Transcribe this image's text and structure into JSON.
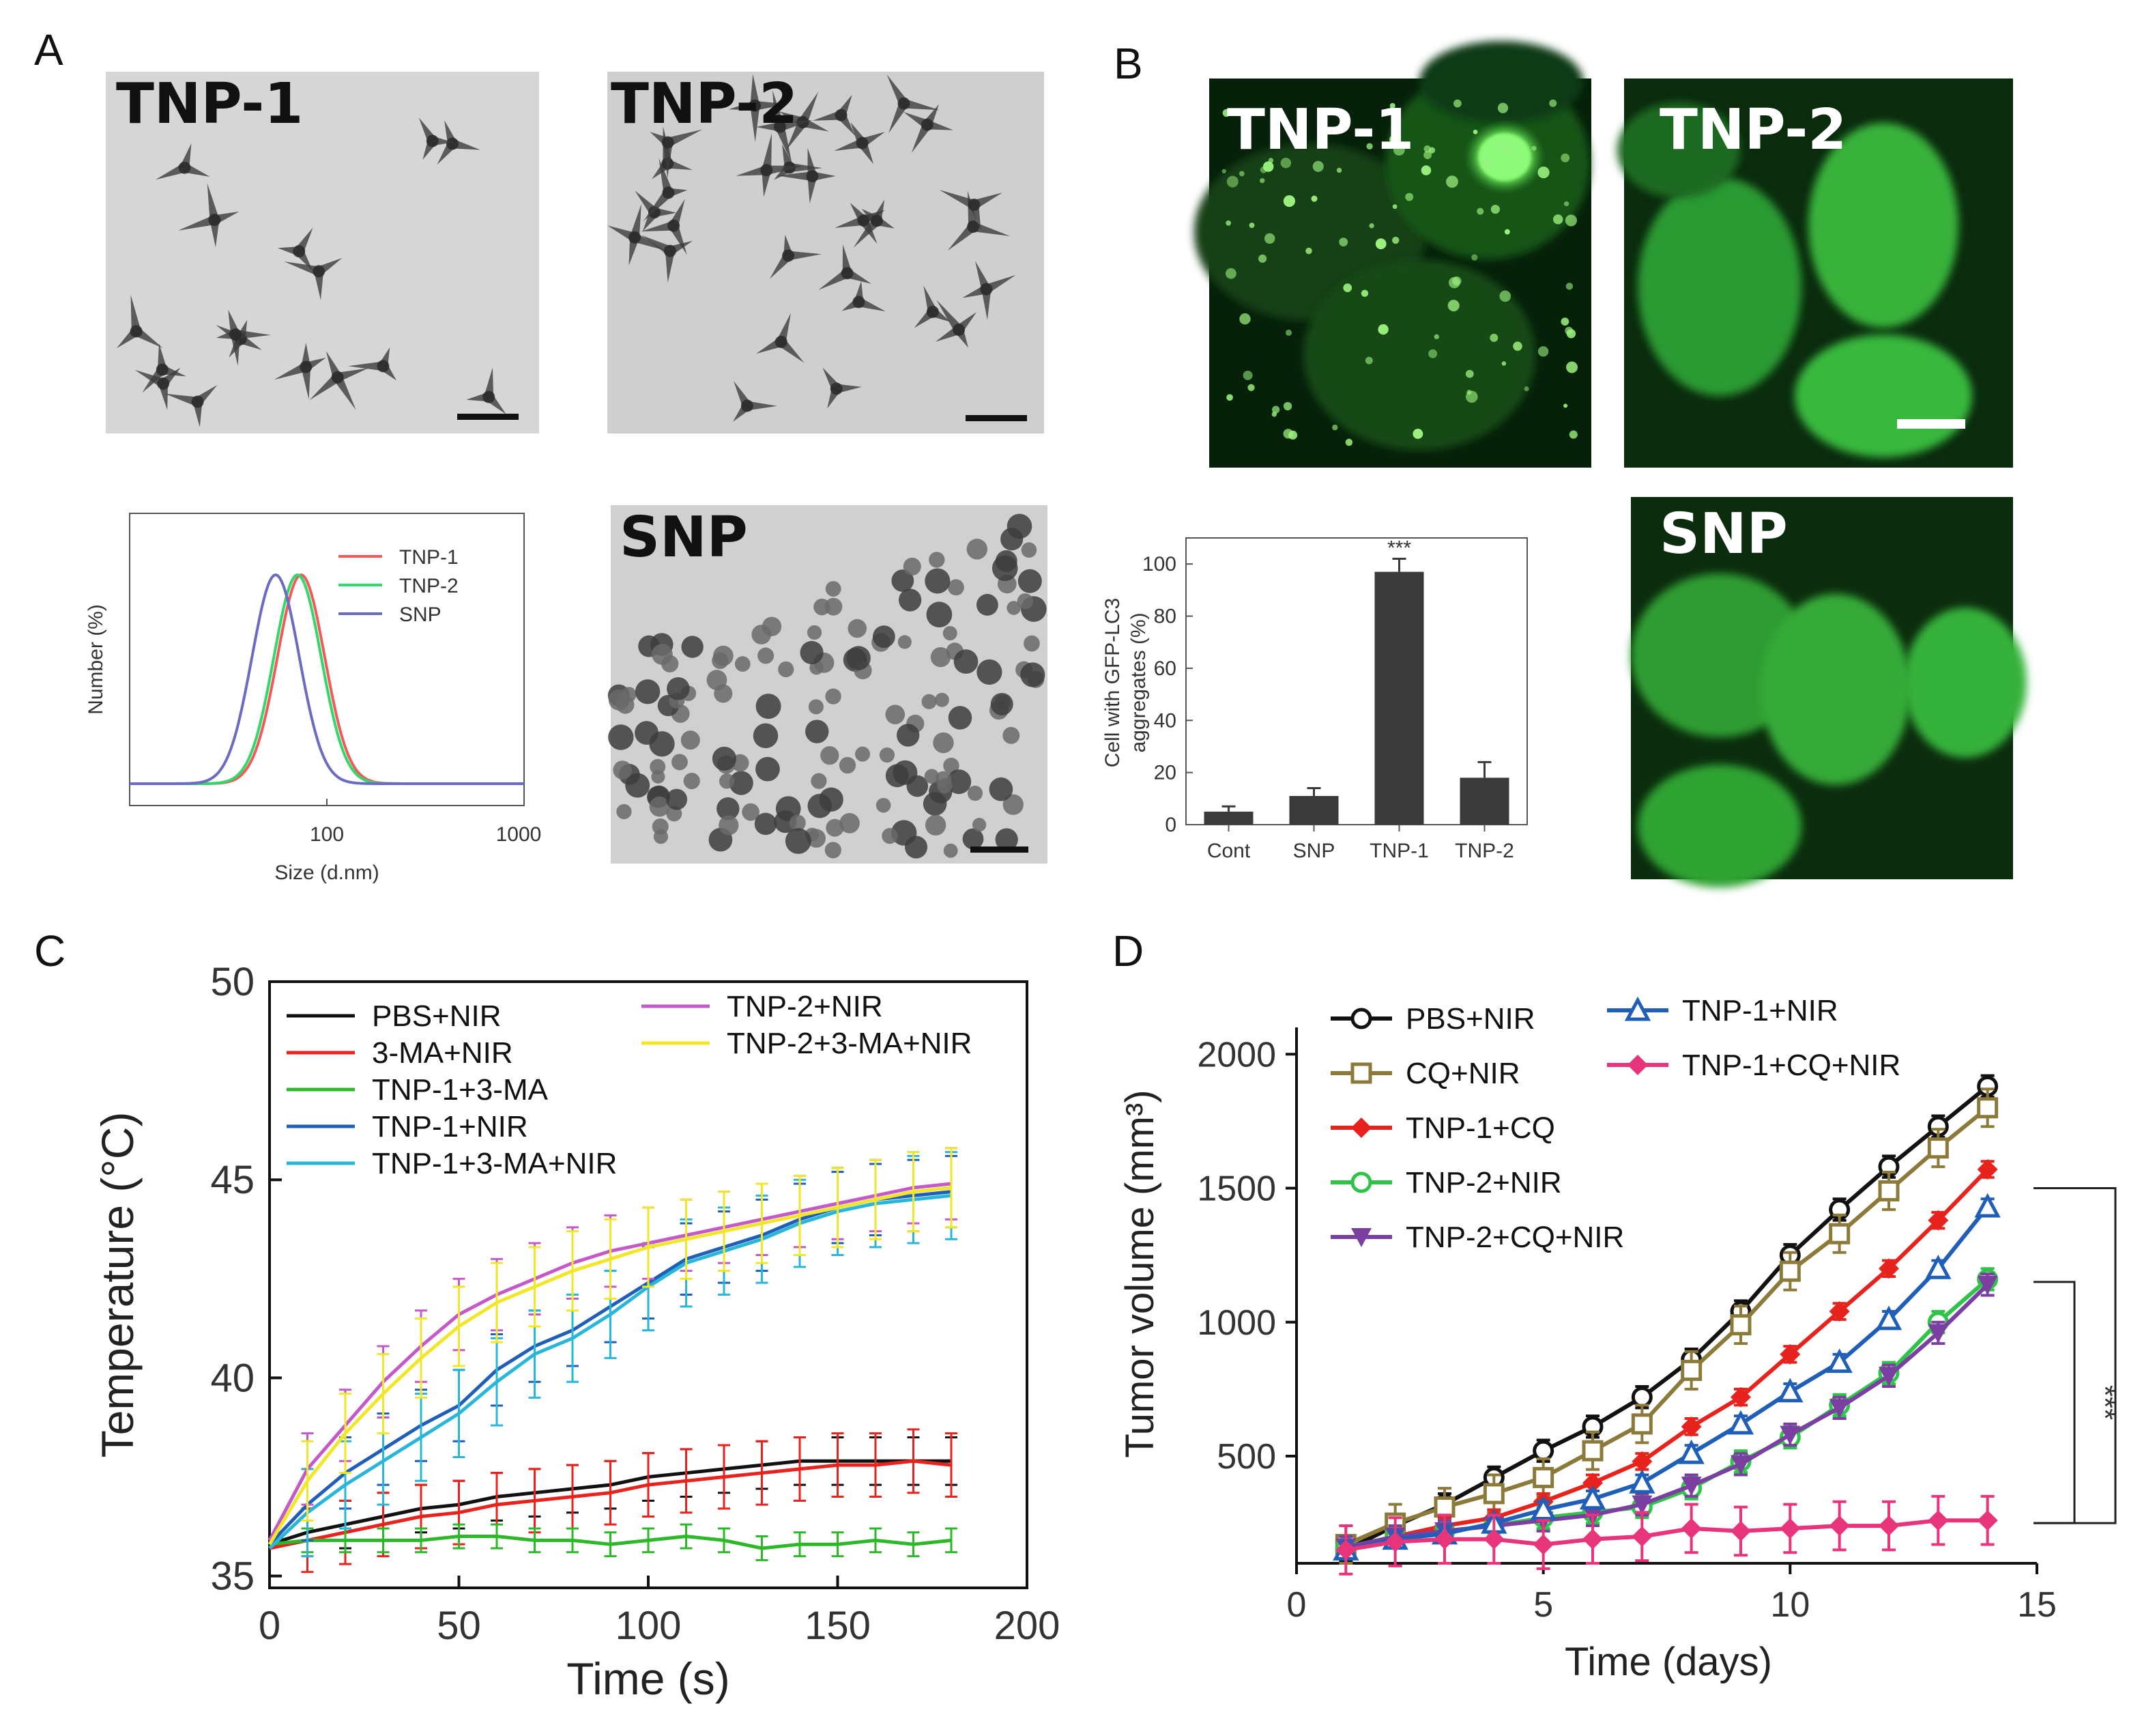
{
  "panels": {
    "A": {
      "letter": "A",
      "images": [
        {
          "label": "TNP-1"
        },
        {
          "label": "TNP-2"
        },
        {
          "label": "SNP"
        }
      ]
    },
    "B": {
      "letter": "B",
      "images": [
        {
          "label": "TNP-1"
        },
        {
          "label": "TNP-2"
        },
        {
          "label": "SNP"
        }
      ]
    },
    "C": {
      "letter": "C"
    },
    "D": {
      "letter": "D"
    }
  },
  "colors": {
    "black": "#111111",
    "red": "#e8221c",
    "green": "#2db82a",
    "blue": "#1f5fb8",
    "cyan": "#29b6d9",
    "magenta": "#c45ac8",
    "yellow": "#f2e62a",
    "olive": "#8b7a3a",
    "lightgreen": "#2ec44a",
    "purple": "#7a3fa0",
    "pink": "#e8347a",
    "dls_red": "#ef5a5a",
    "dls_green": "#33d86a",
    "dls_blue": "#6b6bc2",
    "bar": "#3a3a3a"
  },
  "chart_data": [
    {
      "id": "A-dls",
      "type": "line",
      "title": "",
      "xlabel": "Size (d.nm)",
      "ylabel": "Number (%)",
      "xscale": "log",
      "xlim": [
        10,
        1000
      ],
      "xticks": [
        {
          "value": 100,
          "label": "100"
        },
        {
          "value": 1000,
          "label": "1000"
        }
      ],
      "legend": [
        "TNP-1",
        "TNP-2",
        "SNP"
      ],
      "series": [
        {
          "name": "TNP-1",
          "center": 74,
          "width": 0.12
        },
        {
          "name": "TNP-2",
          "center": 71,
          "width": 0.12
        },
        {
          "name": "SNP",
          "center": 55,
          "width": 0.12
        }
      ]
    },
    {
      "id": "B-bar",
      "type": "bar",
      "title": "",
      "ylabel": "Cell with GFP-LC3 aggregates (%)",
      "ylabel_lines": [
        "Cell with GFP-LC3",
        "aggregates (%)"
      ],
      "categories": [
        "Cont",
        "SNP",
        "TNP-1",
        "TNP-2"
      ],
      "values": [
        5,
        11,
        97,
        18
      ],
      "errors": [
        2,
        3,
        5,
        6
      ],
      "annotation": {
        "category": "TNP-1",
        "text": "***"
      },
      "ylim": [
        0,
        110
      ],
      "yticks": [
        0,
        20,
        40,
        60,
        80,
        100
      ]
    },
    {
      "id": "C-temperature",
      "type": "line",
      "title": "",
      "xlabel": "Time (s)",
      "ylabel": "Temperature (°C)",
      "xlim": [
        0,
        200
      ],
      "ylim": [
        34.7,
        50
      ],
      "xticks": [
        0,
        50,
        100,
        150,
        200
      ],
      "yticks": [
        35,
        40,
        45,
        50
      ],
      "x": [
        0,
        10,
        20,
        30,
        40,
        50,
        60,
        70,
        80,
        90,
        100,
        110,
        120,
        130,
        140,
        150,
        160,
        170,
        180
      ],
      "series": [
        {
          "name": "PBS+NIR",
          "color": "black",
          "values": [
            35.8,
            36.1,
            36.3,
            36.5,
            36.7,
            36.8,
            37.0,
            37.1,
            37.2,
            37.3,
            37.5,
            37.6,
            37.7,
            37.8,
            37.9,
            37.9,
            37.9,
            37.9,
            37.9
          ],
          "error": 0.6
        },
        {
          "name": "3-MA+NIR",
          "color": "red",
          "values": [
            35.7,
            35.9,
            36.1,
            36.3,
            36.5,
            36.6,
            36.8,
            36.9,
            37.0,
            37.1,
            37.3,
            37.4,
            37.5,
            37.6,
            37.7,
            37.8,
            37.8,
            37.9,
            37.8
          ],
          "error": 0.8
        },
        {
          "name": "TNP-1+3-MA",
          "color": "green",
          "values": [
            35.8,
            35.9,
            35.9,
            35.9,
            35.9,
            36.0,
            36.0,
            35.9,
            35.9,
            35.8,
            35.9,
            36.0,
            35.9,
            35.7,
            35.8,
            35.8,
            35.9,
            35.8,
            35.9
          ],
          "error": 0.3
        },
        {
          "name": "TNP-1+NIR",
          "color": "blue",
          "values": [
            35.8,
            36.8,
            37.6,
            38.2,
            38.8,
            39.3,
            40.2,
            40.8,
            41.2,
            41.8,
            42.4,
            43.0,
            43.3,
            43.6,
            44.0,
            44.3,
            44.5,
            44.6,
            44.7
          ],
          "error": 0.9
        },
        {
          "name": "TNP-1+3-MA+NIR",
          "color": "cyan",
          "values": [
            35.7,
            36.6,
            37.3,
            37.9,
            38.5,
            39.1,
            39.9,
            40.6,
            41.0,
            41.6,
            42.3,
            42.9,
            43.2,
            43.5,
            43.9,
            44.2,
            44.4,
            44.5,
            44.6
          ],
          "error": 1.1
        },
        {
          "name": "TNP-2+NIR",
          "color": "magenta",
          "values": [
            35.9,
            37.7,
            38.8,
            39.9,
            40.8,
            41.6,
            42.1,
            42.5,
            42.9,
            43.2,
            43.4,
            43.6,
            43.8,
            44.0,
            44.2,
            44.4,
            44.6,
            44.8,
            44.9
          ],
          "error": 0.9
        },
        {
          "name": "TNP-2+3-MA+NIR",
          "color": "yellow",
          "values": [
            35.8,
            37.4,
            38.6,
            39.6,
            40.5,
            41.3,
            41.9,
            42.3,
            42.7,
            43.0,
            43.3,
            43.5,
            43.7,
            43.9,
            44.1,
            44.3,
            44.5,
            44.7,
            44.8
          ],
          "error": 1.0
        }
      ]
    },
    {
      "id": "D-tumor",
      "type": "line",
      "title": "",
      "xlabel": "Time (days)",
      "ylabel": "Tumor volume (mm³)",
      "xlim": [
        0,
        15
      ],
      "ylim": [
        100,
        2100
      ],
      "xticks": [
        0,
        5,
        10,
        15
      ],
      "yticks": [
        500,
        1000,
        1500,
        2000
      ],
      "x": [
        1,
        2,
        3,
        4,
        5,
        6,
        7,
        8,
        9,
        10,
        11,
        12,
        13,
        14
      ],
      "significance": [
        {
          "label": "***",
          "from": 1150,
          "to": 250
        },
        {
          "label": "***",
          "from": 1500,
          "to": 250
        }
      ],
      "series": [
        {
          "name": "PBS+NIR",
          "color": "black",
          "marker": "circle-open",
          "values": [
            150,
            240,
            320,
            420,
            520,
            610,
            720,
            860,
            1040,
            1250,
            1420,
            1580,
            1730,
            1880
          ],
          "error": 40
        },
        {
          "name": "CQ+NIR",
          "color": "olive",
          "marker": "square-open",
          "values": [
            170,
            250,
            310,
            360,
            420,
            520,
            620,
            820,
            990,
            1190,
            1330,
            1490,
            1650,
            1800
          ],
          "error": 70
        },
        {
          "name": "TNP-1+CQ",
          "color": "red",
          "marker": "diamond-filled",
          "values": [
            150,
            200,
            240,
            270,
            330,
            400,
            480,
            610,
            720,
            880,
            1040,
            1200,
            1380,
            1570
          ],
          "error": 30
        },
        {
          "name": "TNP-2+NIR",
          "color": "lightgreen",
          "marker": "circle-open",
          "values": [
            160,
            200,
            220,
            240,
            270,
            290,
            310,
            380,
            480,
            570,
            690,
            810,
            1000,
            1160
          ],
          "error": 40
        },
        {
          "name": "TNP-2+CQ+NIR",
          "color": "purple",
          "marker": "triangle-down",
          "values": [
            160,
            200,
            220,
            240,
            260,
            280,
            320,
            390,
            470,
            580,
            680,
            800,
            960,
            1140
          ],
          "error": 40
        },
        {
          "name": "TNP-1+NIR",
          "color": "blue",
          "marker": "triangle-open",
          "values": [
            150,
            190,
            210,
            250,
            300,
            340,
            400,
            510,
            620,
            740,
            850,
            1010,
            1200,
            1430
          ],
          "error": 30
        },
        {
          "name": "TNP-1+CQ+NIR",
          "color": "pink",
          "marker": "diamond-filled",
          "values": [
            150,
            180,
            190,
            190,
            170,
            190,
            200,
            230,
            220,
            230,
            240,
            240,
            260,
            260
          ],
          "error": 90
        }
      ]
    }
  ]
}
